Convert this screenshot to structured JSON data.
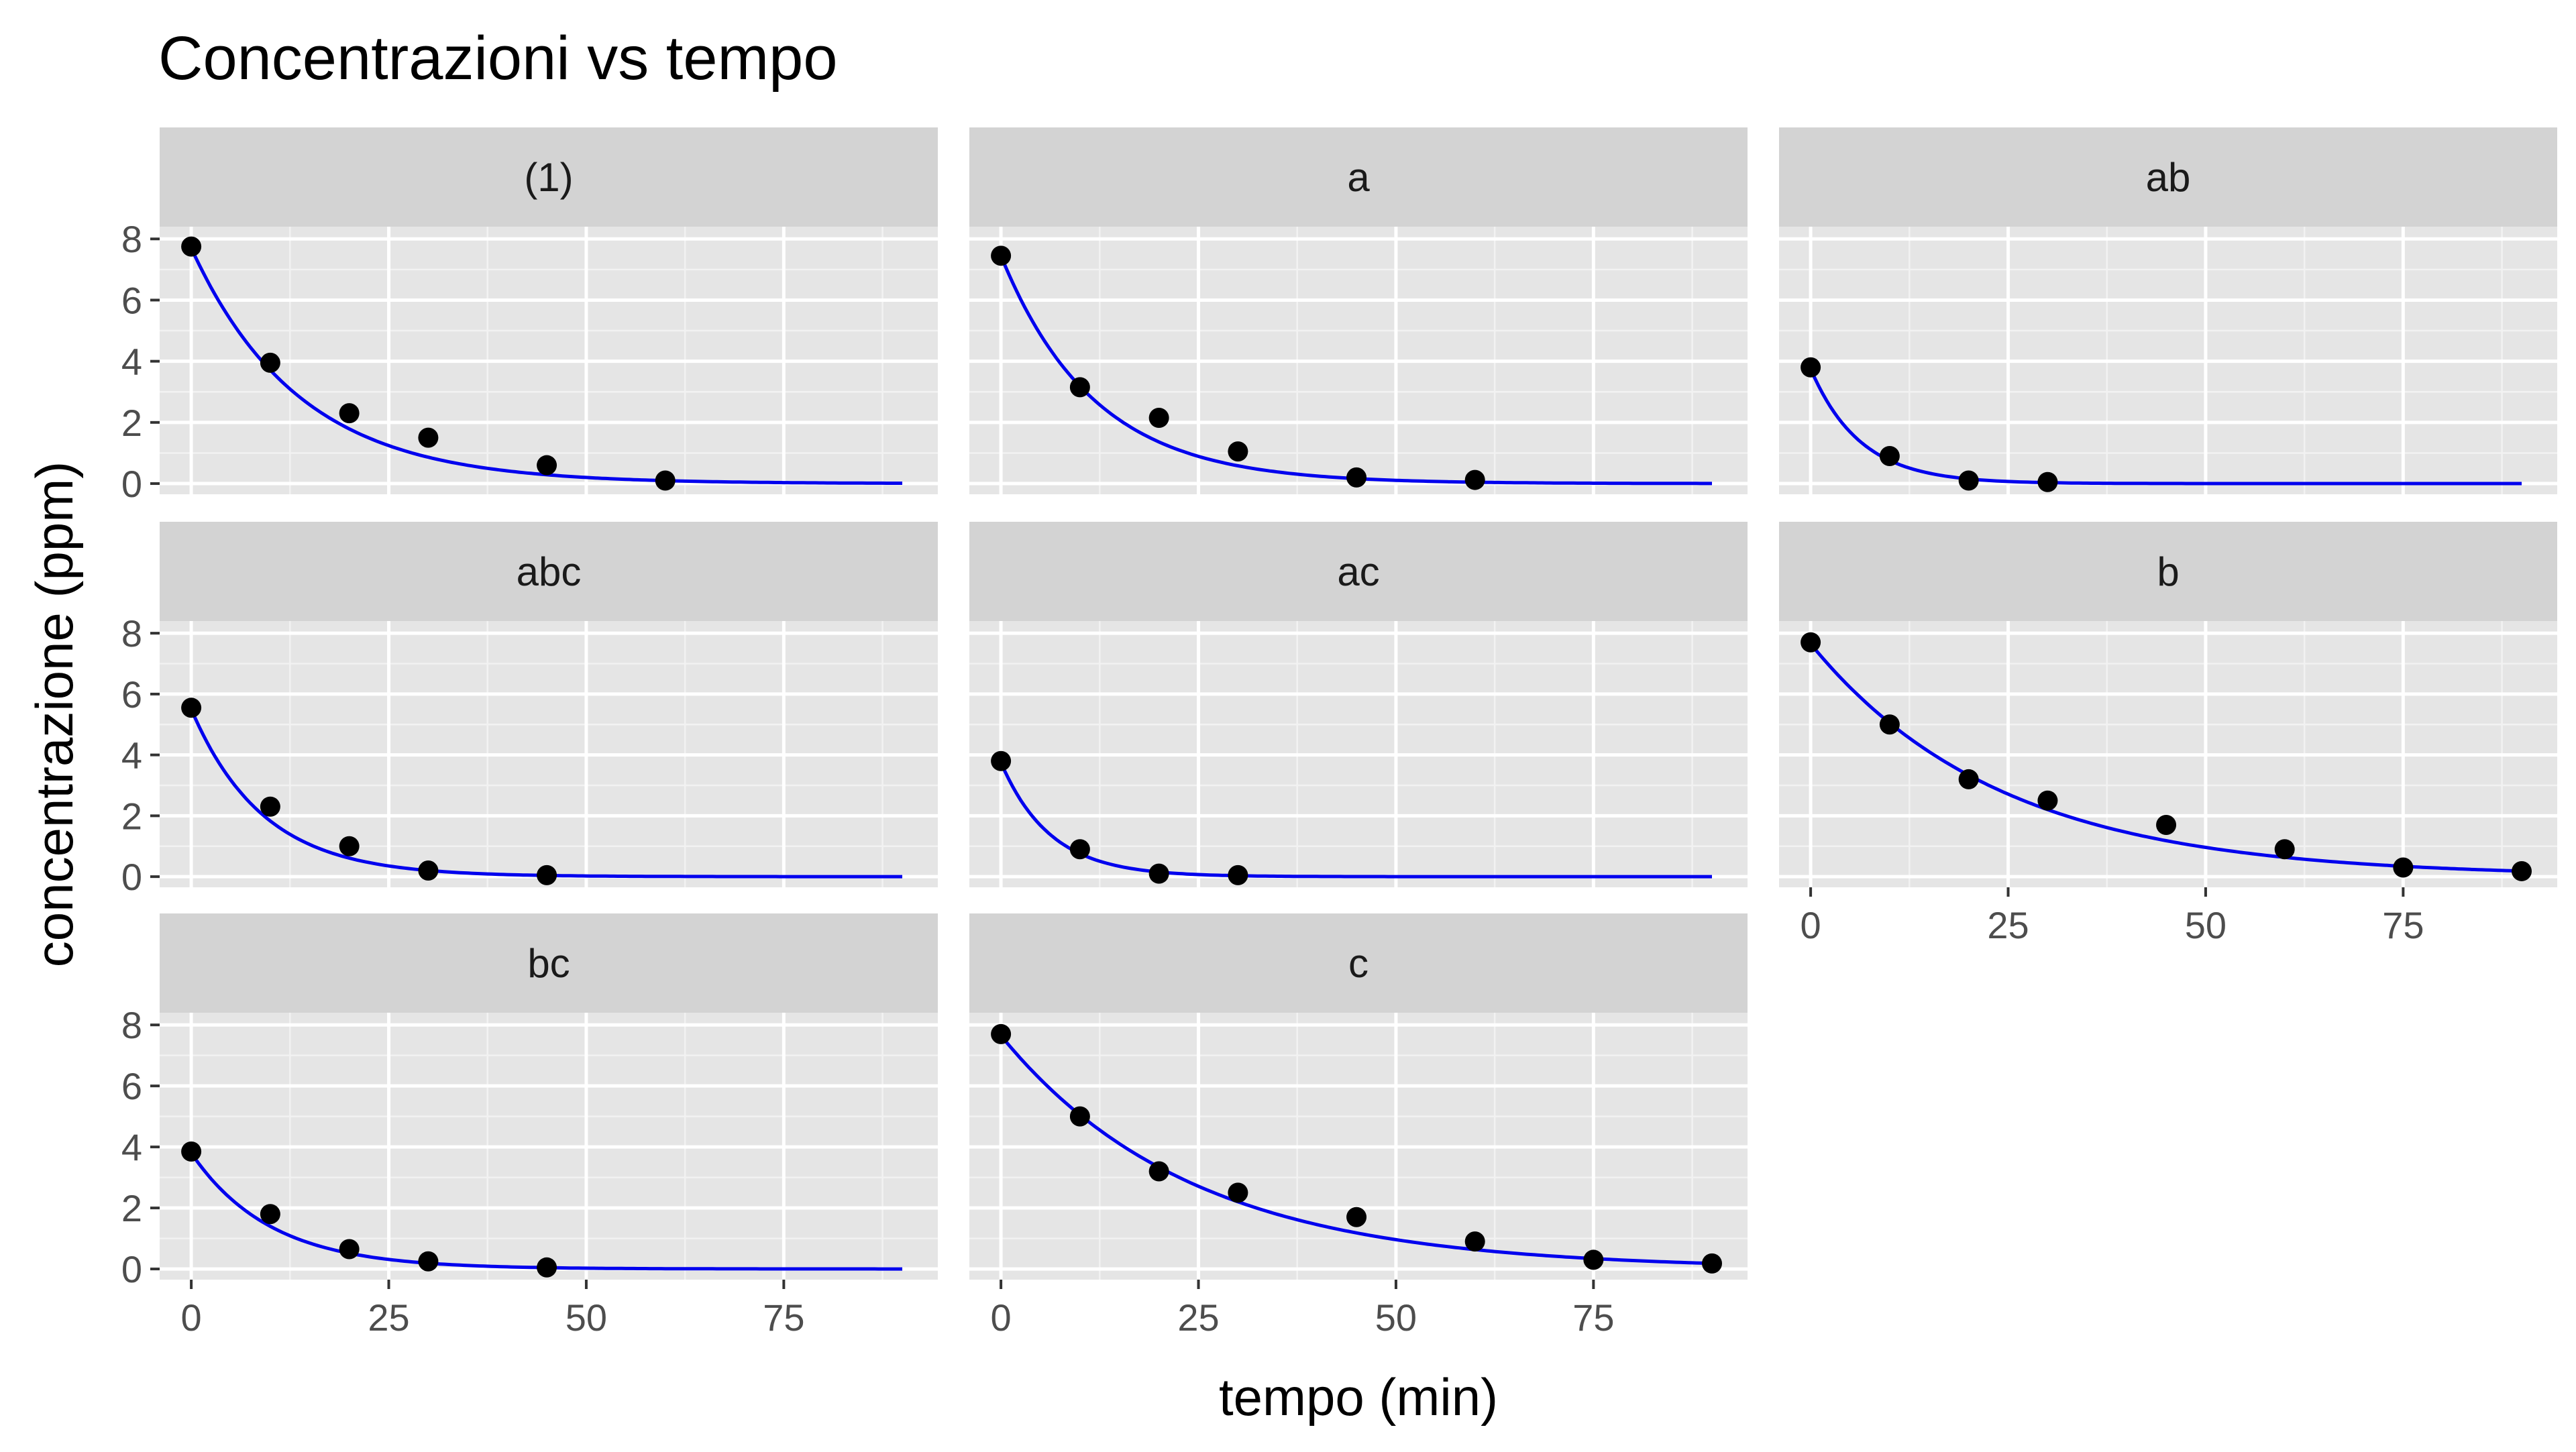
{
  "chart_data": {
    "type": "scatter",
    "title": "Concentrazioni vs tempo",
    "xlabel": "tempo (min)",
    "ylabel": "concentrazione (ppm)",
    "xlim": [
      -4,
      94.5
    ],
    "ylim": [
      -0.35,
      8.4
    ],
    "x_ticks": [
      0,
      25,
      50,
      75
    ],
    "y_ticks": [
      0,
      2,
      4,
      6,
      8
    ],
    "grid": true,
    "fit_line_color": "#0000ee",
    "point_color": "#000000",
    "panel_background": "#e5e5e5",
    "strip_background": "#d3d3d3",
    "fit_x_max": 90,
    "facets": [
      {
        "label": "(1)",
        "points": [
          {
            "x": 0,
            "y": 7.75
          },
          {
            "x": 10,
            "y": 3.95
          },
          {
            "x": 20,
            "y": 2.3
          },
          {
            "x": 30,
            "y": 1.5
          },
          {
            "x": 45,
            "y": 0.6
          },
          {
            "x": 60,
            "y": 0.1
          }
        ],
        "fit": {
          "c0": 7.7,
          "k": 0.073
        }
      },
      {
        "label": "a",
        "points": [
          {
            "x": 0,
            "y": 7.45
          },
          {
            "x": 10,
            "y": 3.15
          },
          {
            "x": 20,
            "y": 2.15
          },
          {
            "x": 30,
            "y": 1.05
          },
          {
            "x": 45,
            "y": 0.2
          },
          {
            "x": 60,
            "y": 0.12
          }
        ],
        "fit": {
          "c0": 7.45,
          "k": 0.085
        }
      },
      {
        "label": "ab",
        "points": [
          {
            "x": 0,
            "y": 3.8
          },
          {
            "x": 10,
            "y": 0.9
          },
          {
            "x": 20,
            "y": 0.1
          },
          {
            "x": 30,
            "y": 0.05
          }
        ],
        "fit": {
          "c0": 3.75,
          "k": 0.16
        }
      },
      {
        "label": "abc",
        "points": [
          {
            "x": 0,
            "y": 5.55
          },
          {
            "x": 10,
            "y": 2.3
          },
          {
            "x": 20,
            "y": 1.0
          },
          {
            "x": 30,
            "y": 0.2
          },
          {
            "x": 45,
            "y": 0.05
          }
        ],
        "fit": {
          "c0": 5.5,
          "k": 0.11
        }
      },
      {
        "label": "ac",
        "points": [
          {
            "x": 0,
            "y": 3.8
          },
          {
            "x": 10,
            "y": 0.9
          },
          {
            "x": 20,
            "y": 0.1
          },
          {
            "x": 30,
            "y": 0.05
          }
        ],
        "fit": {
          "c0": 3.75,
          "k": 0.16
        }
      },
      {
        "label": "b",
        "points": [
          {
            "x": 0,
            "y": 7.7
          },
          {
            "x": 10,
            "y": 5.0
          },
          {
            "x": 20,
            "y": 3.2
          },
          {
            "x": 30,
            "y": 2.5
          },
          {
            "x": 45,
            "y": 1.7
          },
          {
            "x": 60,
            "y": 0.9
          },
          {
            "x": 75,
            "y": 0.3
          },
          {
            "x": 90,
            "y": 0.18
          }
        ],
        "fit": {
          "c0": 7.65,
          "k": 0.0415
        }
      },
      {
        "label": "bc",
        "points": [
          {
            "x": 0,
            "y": 3.85
          },
          {
            "x": 10,
            "y": 1.8
          },
          {
            "x": 20,
            "y": 0.65
          },
          {
            "x": 30,
            "y": 0.25
          },
          {
            "x": 45,
            "y": 0.05
          }
        ],
        "fit": {
          "c0": 3.8,
          "k": 0.1
        }
      },
      {
        "label": "c",
        "points": [
          {
            "x": 0,
            "y": 7.7
          },
          {
            "x": 10,
            "y": 5.0
          },
          {
            "x": 20,
            "y": 3.2
          },
          {
            "x": 30,
            "y": 2.5
          },
          {
            "x": 45,
            "y": 1.7
          },
          {
            "x": 60,
            "y": 0.9
          },
          {
            "x": 75,
            "y": 0.3
          },
          {
            "x": 90,
            "y": 0.18
          }
        ],
        "fit": {
          "c0": 7.65,
          "k": 0.0415
        }
      }
    ]
  }
}
